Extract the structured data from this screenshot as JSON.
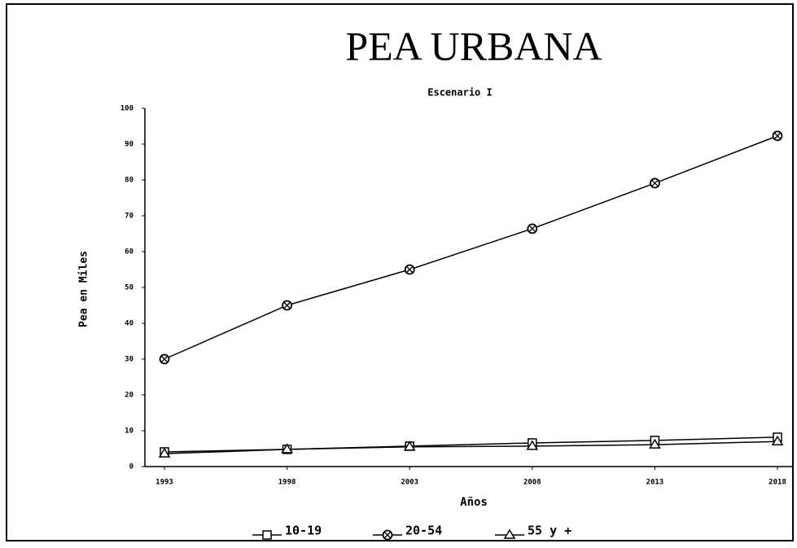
{
  "chart_data": {
    "type": "line",
    "title": "PEA URBANA",
    "subtitle": "Escenario I",
    "x_label": "Años",
    "y_label": "Pea en Miles",
    "categories": [
      "1993",
      "1998",
      "2003",
      "2008",
      "2013",
      "2018"
    ],
    "series": [
      {
        "name": "10-19",
        "color": "#000000",
        "marker": "square",
        "values": [
          4.1,
          4.8,
          5.7,
          6.6,
          7.3,
          8.2
        ]
      },
      {
        "name": "20-54",
        "color": "#000000",
        "marker": "circle",
        "values": [
          30,
          45,
          55,
          66.4,
          79.1,
          92.3
        ]
      },
      {
        "name": "55 y +",
        "color": "#000000",
        "marker": "triangle",
        "values": [
          3.6,
          4.8,
          5.5,
          5.7,
          6.1,
          7.0
        ]
      }
    ],
    "ylim": [
      0,
      100
    ],
    "yticks": [
      0,
      10,
      20,
      30,
      40,
      50,
      60,
      70,
      80,
      90,
      100
    ],
    "grid": false,
    "legend": "bottom"
  }
}
